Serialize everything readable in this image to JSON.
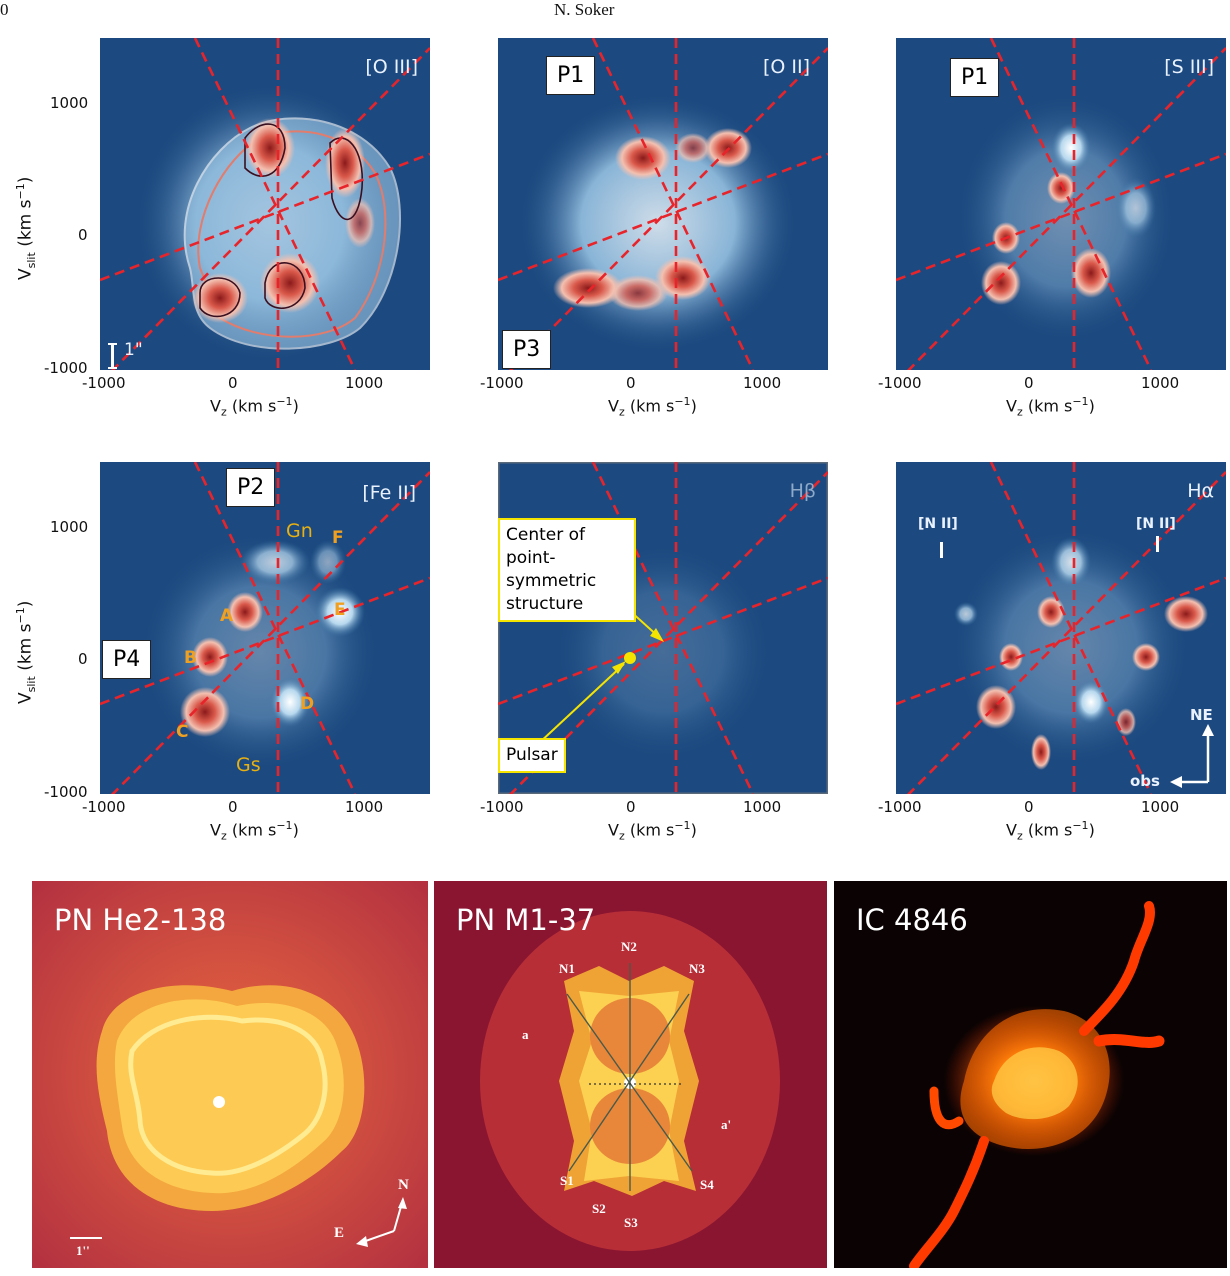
{
  "header": {
    "page_number": "0",
    "author": "N. Soker"
  },
  "axes": {
    "xlabel": "V",
    "xlabel_sub": "z",
    "xlabel_unit": " (km s",
    "xlabel_exp": "−1",
    "xlabel_close": ")",
    "ylabel": "V",
    "ylabel_sub": "slit",
    "ylabel_unit": " (km s",
    "ylabel_exp": "−1",
    "ylabel_close": ")",
    "xticks": [
      "-1000",
      "0",
      "1000"
    ],
    "yticks": [
      "1000",
      "0",
      "-1000"
    ]
  },
  "panels": [
    {
      "line": "[O III]",
      "extra": {
        "scale": "1\""
      }
    },
    {
      "line": "[O II]",
      "boxes": [
        "P1",
        "P3"
      ]
    },
    {
      "line": "[S III]",
      "boxes": [
        "P1"
      ]
    },
    {
      "line": "[Fe II]",
      "boxes": [
        "P2",
        "P4"
      ],
      "knots": [
        "A",
        "B",
        "C",
        "D",
        "E",
        "F"
      ],
      "groups": [
        "Gn",
        "Gs"
      ]
    },
    {
      "line": "Hβ",
      "annotations": {
        "center": [
          "Center of",
          "point-",
          "symmetric",
          "structure"
        ],
        "pulsar": "Pulsar"
      }
    },
    {
      "line": "Hα",
      "nii_left": "[N II]",
      "nii_right": "[N II]",
      "compass_ne": "NE",
      "compass_obs": "obs"
    }
  ],
  "images": [
    {
      "title": "PN He2-138",
      "scale": "1''",
      "compass_n": "N",
      "compass_e": "E"
    },
    {
      "title": "PN M1-37",
      "labels": [
        "N1",
        "N2",
        "N3",
        "a",
        "a'",
        "S1",
        "S2",
        "S3",
        "S4"
      ]
    },
    {
      "title": "IC 4846"
    }
  ],
  "colors": {
    "map_bg": "#1c4a80",
    "map_glow": "#b9d9ef",
    "hot": "#c0392b",
    "dash": "#e8242a"
  }
}
